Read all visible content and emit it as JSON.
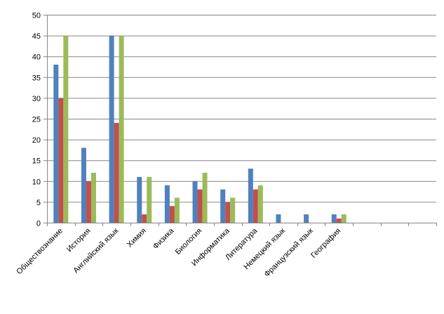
{
  "chart_data": {
    "type": "bar",
    "title": "",
    "xlabel": "",
    "ylabel": "",
    "ylim": [
      0,
      50
    ],
    "yticks": [
      0,
      5,
      10,
      15,
      20,
      25,
      30,
      35,
      40,
      45,
      50
    ],
    "grid": true,
    "legend": "none",
    "categories": [
      "Обществознание",
      "История",
      "Английский язык",
      "Химия",
      "Физика",
      "Биология",
      "Информатика",
      "Литература",
      "Немецкий язык",
      "Французский язык",
      "География",
      "",
      "",
      ""
    ],
    "series": [
      {
        "color": "#4F81BD",
        "values": [
          38,
          18,
          45,
          11,
          9,
          10,
          8,
          13,
          2,
          2,
          2,
          null,
          null,
          null
        ]
      },
      {
        "color": "#C0504D",
        "values": [
          30,
          10,
          24,
          2,
          4,
          8,
          5,
          8,
          null,
          null,
          1,
          null,
          null,
          null
        ]
      },
      {
        "color": "#9BBB59",
        "values": [
          45,
          12,
          45,
          11,
          6,
          12,
          6,
          9,
          null,
          null,
          2,
          null,
          null,
          null
        ]
      }
    ]
  }
}
